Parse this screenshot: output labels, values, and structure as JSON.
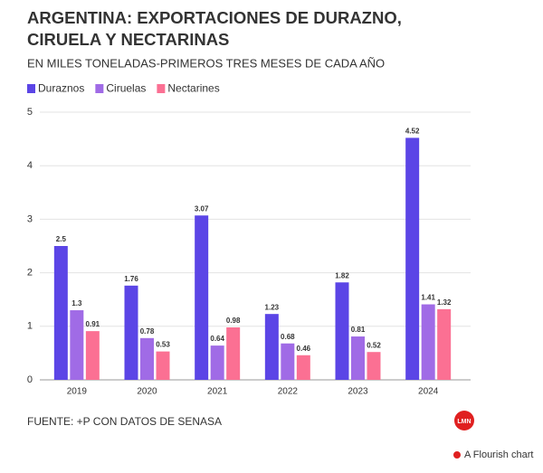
{
  "chart_data": {
    "type": "bar",
    "title": "ARGENTINA: EXPORTACIONES DE DURAZNO, CIRUELA Y NECTARINAS",
    "subtitle": "EN MILES TONELADAS-PRIMEROS TRES MESES DE CADA AÑO",
    "categories": [
      "2019",
      "2020",
      "2021",
      "2022",
      "2023",
      "2024"
    ],
    "series": [
      {
        "name": "Duraznos",
        "color": "#5b45e6",
        "values": [
          2.5,
          1.76,
          3.07,
          1.23,
          1.82,
          4.52
        ]
      },
      {
        "name": "Ciruelas",
        "color": "#a06be6",
        "values": [
          1.3,
          0.78,
          0.64,
          0.68,
          0.81,
          1.41
        ]
      },
      {
        "name": "Nectarines",
        "color": "#fb7093",
        "values": [
          0.91,
          0.53,
          0.98,
          0.46,
          0.52,
          1.32
        ]
      }
    ],
    "ylim": [
      0,
      5
    ],
    "yticks": [
      0,
      1,
      2,
      3,
      4,
      5
    ],
    "grid": true,
    "source": "FUENTE: +P CON DATOS DE SENASA",
    "logo": "LMN",
    "credit": "A Flourish chart"
  }
}
